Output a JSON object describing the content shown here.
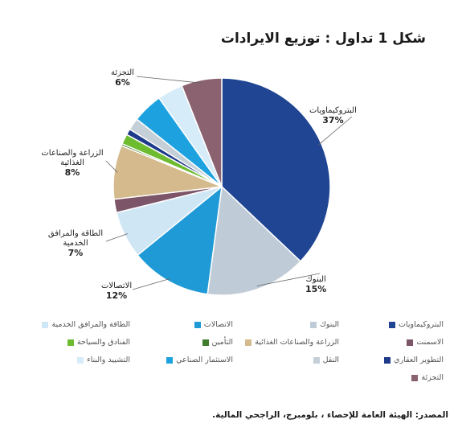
{
  "header": {
    "title": "شكل 1   تداول : توزيع الايرادات"
  },
  "source": "المصدر: الهيئة العامة للإحصاء ، بلومبرج، الراجحي المالية.",
  "chart_data": {
    "type": "pie",
    "title": "",
    "slices": [
      {
        "name": "البتروكيماويات",
        "value": 37,
        "color": "#1f4593",
        "labeled": true,
        "label_pct": "37%"
      },
      {
        "name": "البنوك",
        "value": 15,
        "color": "#bfcbd6",
        "labeled": true,
        "label_pct": "15%"
      },
      {
        "name": "الاتصالات",
        "value": 12,
        "color": "#1f9ad6",
        "labeled": true,
        "label_pct": "12%"
      },
      {
        "name": "الطاقة والمرافق الخدمية",
        "value": 7,
        "color": "#cfe6f5",
        "labeled": true,
        "label_pct": "7%"
      },
      {
        "name": "الاسمنت",
        "value": 2,
        "color": "#7d5568",
        "labeled": false
      },
      {
        "name": "الزراعة والصناعات الغذائية",
        "value": 8,
        "color": "#d4ba8c",
        "labeled": true,
        "label_pct": "8%"
      },
      {
        "name": "التأمين",
        "value": 0.3,
        "color": "#3f7d2c",
        "labeled": false
      },
      {
        "name": "الفنادق والسياحة",
        "value": 1.5,
        "color": "#6dbb2f",
        "labeled": false
      },
      {
        "name": "التطوير العقاري",
        "value": 0.9,
        "color": "#1e3a8a",
        "labeled": false
      },
      {
        "name": "النقل",
        "value": 1.8,
        "color": "#c4cfd8",
        "labeled": false
      },
      {
        "name": "الاستثمار الصناعي",
        "value": 4.5,
        "color": "#1ea2df",
        "labeled": false
      },
      {
        "name": "التشييد والبناء",
        "value": 3.8,
        "color": "#d6ecf8",
        "labeled": false
      },
      {
        "name": "التجزئة",
        "value": 6,
        "color": "#8b6270",
        "labeled": true,
        "label_pct": "6%"
      }
    ]
  }
}
